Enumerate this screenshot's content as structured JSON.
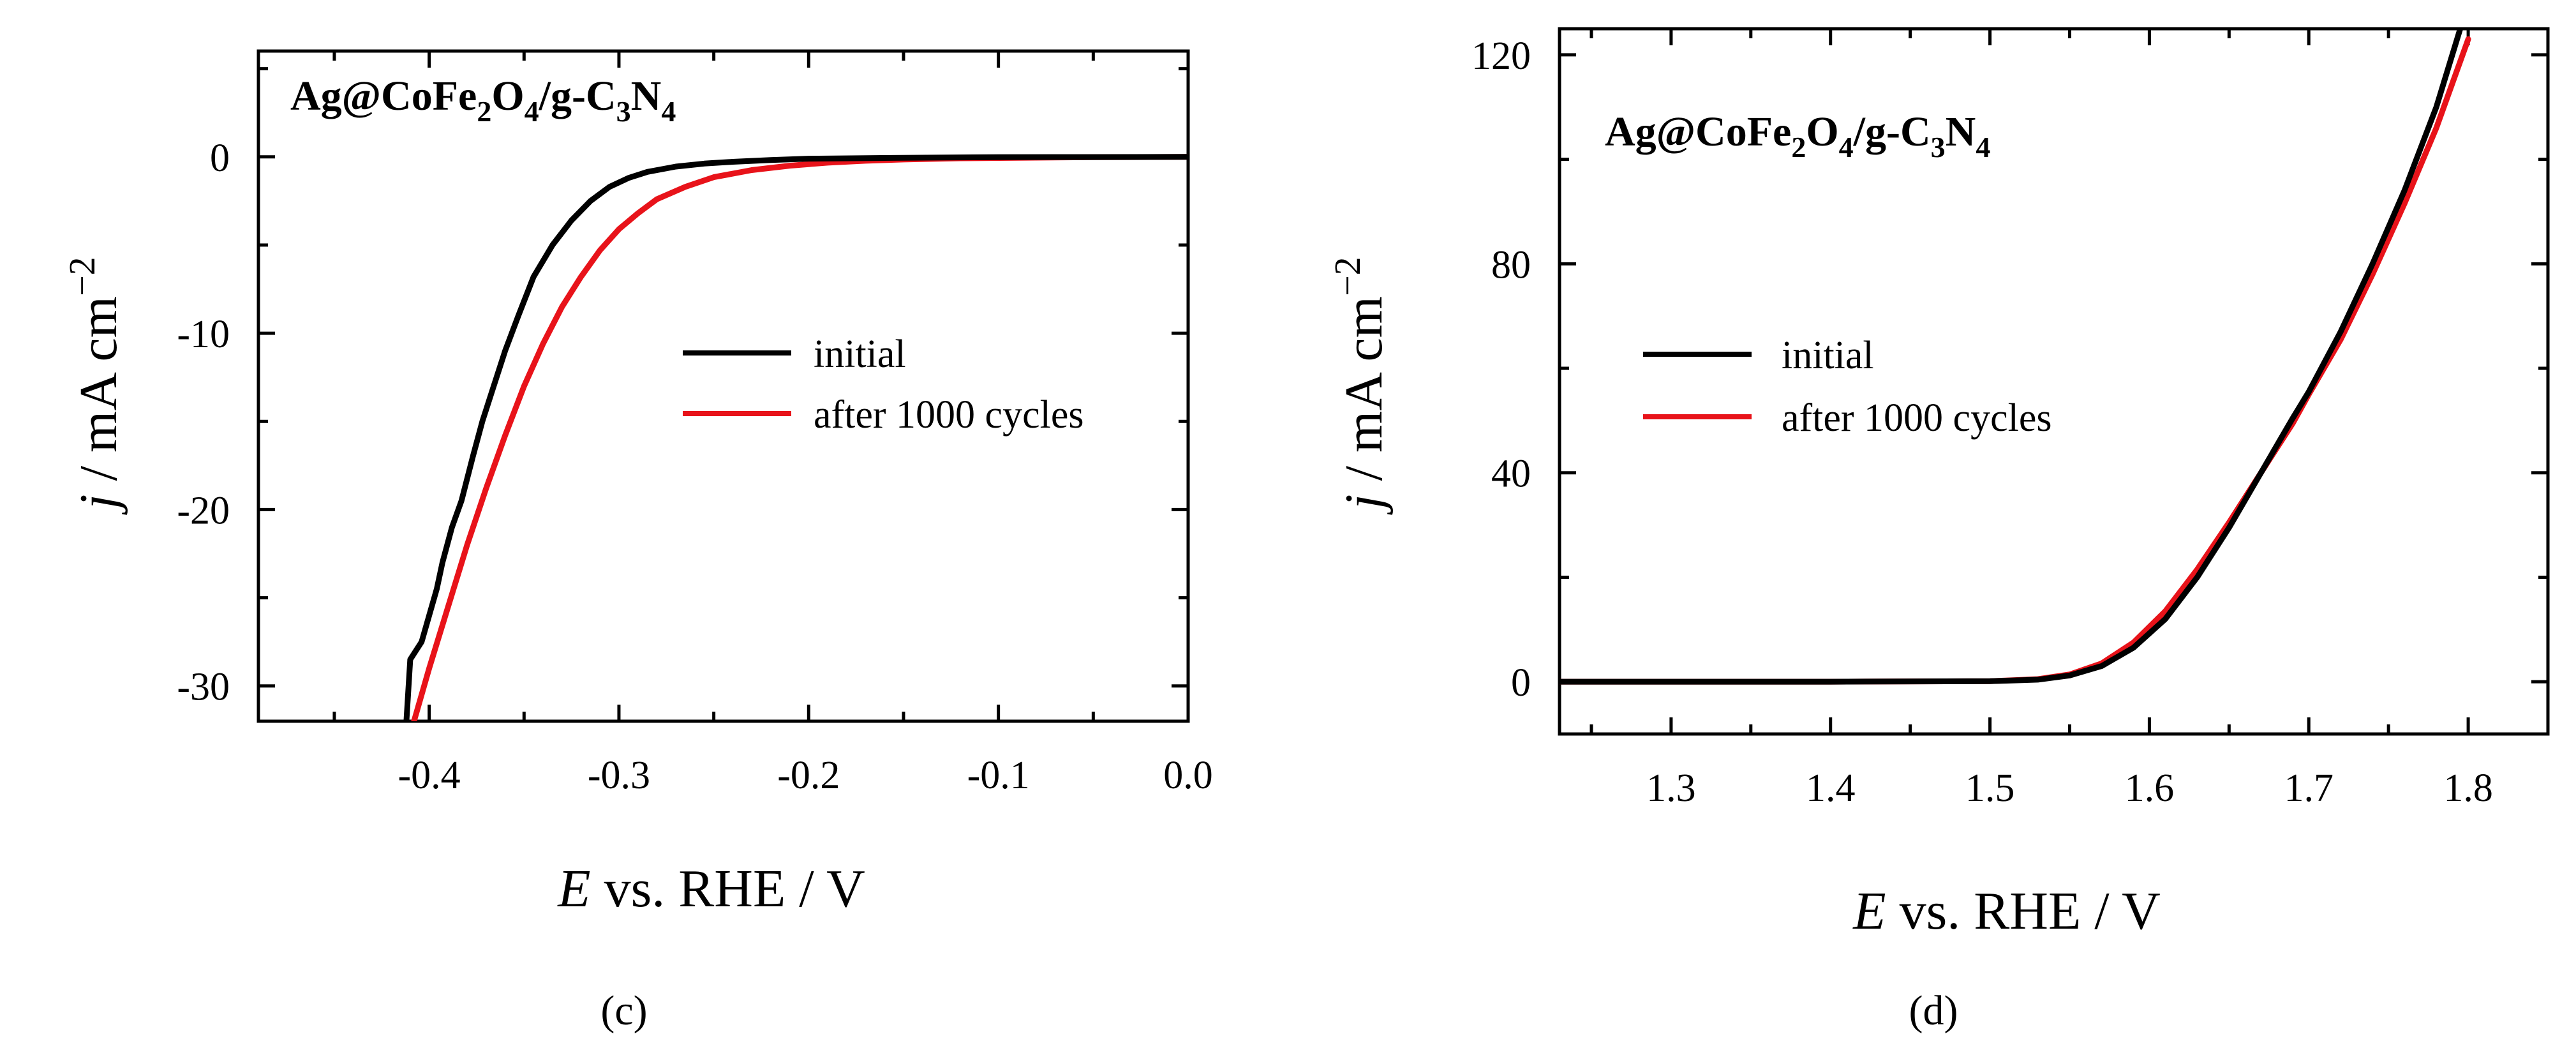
{
  "figure": {
    "panels": [
      {
        "id": "c",
        "panel_label": "(c)",
        "title": {
          "main": "Ag@CoFe",
          "sub1": "2",
          "mid1": "O",
          "sub2": "4",
          "mid2": "/g-C",
          "sub3": "3",
          "mid3": "N",
          "sub4": "4"
        },
        "ylabel": {
          "italic": "j",
          "rest": " / mA cm",
          "sup": "−2"
        },
        "xlabel": {
          "italic": "E",
          "rest": " vs. RHE / V"
        },
        "legend": [
          "initial",
          "after 1000 cycles"
        ]
      },
      {
        "id": "d",
        "panel_label": "(d)",
        "title": {
          "main": "Ag@CoFe",
          "sub1": "2",
          "mid1": "O",
          "sub2": "4",
          "mid2": "/g-C",
          "sub3": "3",
          "mid3": "N",
          "sub4": "4"
        },
        "ylabel": {
          "italic": "j",
          "rest": " / mA cm",
          "sup": "−2"
        },
        "xlabel": {
          "italic": "E",
          "rest": " vs. RHE / V"
        },
        "legend": [
          "initial",
          "after 1000 cycles"
        ]
      }
    ]
  },
  "chart_data": [
    {
      "type": "line",
      "panel": "c",
      "xlabel": "E vs. RHE / V",
      "ylabel": "j / mA cm−2",
      "xlim": [
        -0.49,
        0.0
      ],
      "ylim": [
        -32,
        6
      ],
      "xticks": [
        -0.4,
        -0.3,
        -0.2,
        -0.1,
        0.0
      ],
      "xtick_labels": [
        "-0.4",
        "-0.3",
        "-0.2",
        "-0.1",
        "0.0"
      ],
      "yticks": [
        0,
        -10,
        -20,
        -30
      ],
      "ytick_labels": [
        "0",
        "-10",
        "-20",
        "-30"
      ],
      "legend_position": "center-right",
      "series": [
        {
          "name": "initial",
          "color": "#000000",
          "x": [
            -0.412,
            -0.41,
            -0.404,
            -0.4,
            -0.396,
            -0.393,
            -0.388,
            -0.383,
            -0.377,
            -0.372,
            -0.366,
            -0.36,
            -0.353,
            -0.345,
            -0.335,
            -0.325,
            -0.315,
            -0.305,
            -0.295,
            -0.285,
            -0.27,
            -0.255,
            -0.24,
            -0.22,
            -0.2,
            -0.15,
            -0.1,
            -0.05,
            0.0
          ],
          "y": [
            -32.0,
            -28.5,
            -27.5,
            -26.0,
            -24.5,
            -23.0,
            -21.0,
            -19.5,
            -17.0,
            -15.0,
            -13.0,
            -11.0,
            -9.0,
            -6.8,
            -5.0,
            -3.6,
            -2.5,
            -1.7,
            -1.2,
            -0.85,
            -0.55,
            -0.38,
            -0.28,
            -0.18,
            -0.1,
            -0.05,
            -0.02,
            -0.01,
            0.0
          ]
        },
        {
          "name": "after 1000 cycles",
          "color": "#e8131a",
          "x": [
            -0.408,
            -0.4,
            -0.39,
            -0.38,
            -0.37,
            -0.36,
            -0.35,
            -0.34,
            -0.33,
            -0.32,
            -0.31,
            -0.3,
            -0.29,
            -0.28,
            -0.265,
            -0.25,
            -0.23,
            -0.21,
            -0.19,
            -0.17,
            -0.15,
            -0.12,
            -0.09,
            -0.05,
            0.0
          ],
          "y": [
            -32.0,
            -29.0,
            -25.5,
            -22.0,
            -18.8,
            -15.8,
            -13.0,
            -10.6,
            -8.5,
            -6.8,
            -5.3,
            -4.1,
            -3.2,
            -2.4,
            -1.7,
            -1.15,
            -0.75,
            -0.5,
            -0.33,
            -0.22,
            -0.15,
            -0.08,
            -0.05,
            -0.02,
            0.0
          ]
        }
      ]
    },
    {
      "type": "line",
      "panel": "d",
      "xlabel": "E vs. RHE / V",
      "ylabel": "j / mA cm−2",
      "xlim": [
        1.23,
        1.85
      ],
      "ylim": [
        -10,
        125
      ],
      "xticks": [
        1.3,
        1.4,
        1.5,
        1.6,
        1.7,
        1.8
      ],
      "xtick_labels": [
        "1.3",
        "1.4",
        "1.5",
        "1.6",
        "1.7",
        "1.8"
      ],
      "yticks": [
        0,
        40,
        80,
        120
      ],
      "ytick_labels": [
        "0",
        "40",
        "80",
        "120"
      ],
      "legend_position": "center-left",
      "series": [
        {
          "name": "initial",
          "color": "#000000",
          "x": [
            1.23,
            1.3,
            1.4,
            1.5,
            1.53,
            1.55,
            1.57,
            1.59,
            1.61,
            1.63,
            1.65,
            1.67,
            1.69,
            1.7,
            1.72,
            1.74,
            1.76,
            1.78,
            1.795
          ],
          "y": [
            0.0,
            0.0,
            0.0,
            0.1,
            0.4,
            1.2,
            3.0,
            6.5,
            12.0,
            20.0,
            29.5,
            40.0,
            50.5,
            55.5,
            67.0,
            80.0,
            94.0,
            110.0,
            125.0
          ]
        },
        {
          "name": "after 1000 cycles",
          "color": "#e8131a",
          "x": [
            1.23,
            1.3,
            1.4,
            1.5,
            1.53,
            1.55,
            1.57,
            1.59,
            1.61,
            1.63,
            1.65,
            1.67,
            1.69,
            1.7,
            1.72,
            1.74,
            1.76,
            1.78,
            1.8
          ],
          "y": [
            0.0,
            0.0,
            0.0,
            0.1,
            0.5,
            1.4,
            3.5,
            7.5,
            13.5,
            21.5,
            30.5,
            40.0,
            49.5,
            55.0,
            65.5,
            78.0,
            91.5,
            106.0,
            123.0
          ]
        }
      ]
    }
  ]
}
